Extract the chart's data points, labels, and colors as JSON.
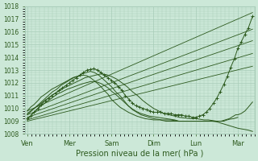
{
  "title": "",
  "xlabel": "Pression niveau de la mer( hPa )",
  "ylabel": "",
  "ylim": [
    1008,
    1018
  ],
  "yticks": [
    1008,
    1009,
    1010,
    1011,
    1012,
    1013,
    1014,
    1015,
    1016,
    1017,
    1018
  ],
  "xtick_labels": [
    "Ven",
    "Mer",
    "Sam",
    "Dim",
    "Lun",
    "Mar"
  ],
  "xtick_positions": [
    0,
    1,
    2,
    3,
    4,
    5
  ],
  "bg_color": "#cce8d8",
  "grid_color": "#a8ccb8",
  "line_color": "#2d5a1e",
  "font_color": "#2d5a1e",
  "xlim": [
    -0.05,
    5.4
  ],
  "straight_lines": [
    {
      "x0": 0.0,
      "y0": 1009.8,
      "x1": 5.35,
      "y1": 1017.5
    },
    {
      "x0": 0.0,
      "y0": 1009.5,
      "x1": 5.35,
      "y1": 1016.2
    },
    {
      "x0": 0.0,
      "y0": 1009.3,
      "x1": 5.35,
      "y1": 1015.3
    },
    {
      "x0": 0.0,
      "y0": 1009.1,
      "x1": 5.35,
      "y1": 1014.3
    },
    {
      "x0": 0.0,
      "y0": 1009.0,
      "x1": 5.35,
      "y1": 1013.3
    }
  ],
  "curved_lines": [
    {
      "x": [
        0.0,
        0.08,
        0.16,
        0.25,
        0.33,
        0.42,
        0.5,
        0.58,
        0.67,
        0.75,
        0.83,
        0.92,
        1.0,
        1.08,
        1.17,
        1.25,
        1.33,
        1.42,
        1.5,
        1.58,
        1.67,
        1.75,
        1.83,
        1.92,
        2.0,
        2.08,
        2.17,
        2.25,
        2.33,
        2.42,
        2.5,
        2.58,
        2.67,
        2.75,
        2.83,
        2.92,
        3.0,
        3.08,
        3.17,
        3.25,
        3.33,
        3.42,
        3.5,
        3.58,
        3.67,
        3.75,
        3.83,
        3.92,
        4.0,
        4.08,
        4.17,
        4.25,
        4.33,
        4.42,
        4.5,
        4.58,
        4.67,
        4.75,
        4.83,
        4.92,
        5.0,
        5.08,
        5.17,
        5.25,
        5.35
      ],
      "y": [
        1009.2,
        1009.4,
        1009.7,
        1010.0,
        1010.3,
        1010.6,
        1010.8,
        1011.0,
        1011.2,
        1011.4,
        1011.6,
        1011.8,
        1012.0,
        1012.2,
        1012.4,
        1012.6,
        1012.8,
        1013.0,
        1013.05,
        1013.1,
        1013.0,
        1012.8,
        1012.6,
        1012.4,
        1012.2,
        1012.0,
        1011.7,
        1011.4,
        1011.0,
        1010.7,
        1010.4,
        1010.2,
        1010.1,
        1010.0,
        1009.9,
        1009.8,
        1009.7,
        1009.7,
        1009.7,
        1009.6,
        1009.6,
        1009.6,
        1009.5,
        1009.5,
        1009.5,
        1009.4,
        1009.4,
        1009.3,
        1009.3,
        1009.4,
        1009.5,
        1009.7,
        1010.0,
        1010.4,
        1010.8,
        1011.3,
        1011.9,
        1012.5,
        1013.2,
        1013.9,
        1014.7,
        1015.2,
        1015.8,
        1016.3,
        1017.2
      ],
      "has_marker": true
    },
    {
      "x": [
        0.0,
        0.1,
        0.2,
        0.3,
        0.4,
        0.5,
        0.6,
        0.7,
        0.8,
        0.9,
        1.0,
        1.1,
        1.2,
        1.3,
        1.4,
        1.5,
        1.6,
        1.7,
        1.8,
        1.9,
        2.0,
        2.1,
        2.2,
        2.3,
        2.4,
        2.5,
        2.6,
        2.7,
        2.8,
        2.9,
        3.0,
        3.2,
        3.4,
        3.6,
        3.8,
        4.0,
        4.2,
        4.4,
        4.6,
        4.7,
        4.75,
        4.8,
        4.85,
        4.9,
        4.95,
        5.0,
        5.08,
        5.17,
        5.25,
        5.35
      ],
      "y": [
        1009.5,
        1009.8,
        1010.1,
        1010.4,
        1010.7,
        1011.0,
        1011.3,
        1011.5,
        1011.8,
        1012.0,
        1012.2,
        1012.4,
        1012.5,
        1012.7,
        1012.8,
        1012.9,
        1012.8,
        1012.6,
        1012.3,
        1012.0,
        1011.7,
        1011.3,
        1011.0,
        1010.6,
        1010.2,
        1009.9,
        1009.7,
        1009.5,
        1009.4,
        1009.3,
        1009.2,
        1009.1,
        1009.1,
        1009.0,
        1009.0,
        1009.0,
        1009.0,
        1009.0,
        1009.0,
        1009.1,
        1009.15,
        1009.2,
        1009.3,
        1009.4,
        1009.5,
        1009.5,
        1009.6,
        1009.8,
        1010.1,
        1010.5
      ],
      "has_marker": false
    },
    {
      "x": [
        0.0,
        0.12,
        0.25,
        0.37,
        0.5,
        0.62,
        0.75,
        0.87,
        1.0,
        1.12,
        1.25,
        1.37,
        1.5,
        1.62,
        1.75,
        1.87,
        2.0,
        2.12,
        2.25,
        2.37,
        2.5,
        2.62,
        2.75,
        2.87,
        3.0,
        3.12,
        3.25,
        3.37,
        3.5,
        3.62,
        3.75,
        3.87,
        4.0,
        4.1,
        4.2,
        4.3,
        4.4,
        4.5,
        4.55,
        4.6,
        4.67,
        4.7,
        4.75,
        4.8,
        4.9,
        5.0
      ],
      "y": [
        1009.6,
        1009.9,
        1010.2,
        1010.5,
        1010.8,
        1011.1,
        1011.35,
        1011.6,
        1011.8,
        1012.0,
        1012.2,
        1012.4,
        1012.5,
        1012.6,
        1012.7,
        1012.65,
        1012.5,
        1012.3,
        1012.0,
        1011.7,
        1011.3,
        1011.0,
        1010.6,
        1010.3,
        1010.0,
        1009.8,
        1009.6,
        1009.5,
        1009.4,
        1009.3,
        1009.25,
        1009.2,
        1009.2,
        1009.15,
        1009.1,
        1009.1,
        1009.05,
        1009.0,
        1009.0,
        1009.0,
        1009.0,
        1009.05,
        1009.1,
        1009.15,
        1009.2,
        1009.3
      ],
      "has_marker": false
    },
    {
      "x": [
        0.0,
        0.08,
        0.16,
        0.25,
        0.33,
        0.42,
        0.5,
        0.58,
        0.67,
        0.75,
        0.83,
        0.92,
        1.0,
        1.08,
        1.17,
        1.25,
        1.33,
        1.42,
        1.5,
        1.58,
        1.67,
        1.75,
        1.83,
        1.92,
        2.0,
        2.1,
        2.2,
        2.3,
        2.4,
        2.5,
        2.6,
        2.7,
        2.8,
        2.9,
        3.0,
        3.15,
        3.3,
        3.45,
        3.6,
        3.75,
        3.9,
        4.0,
        4.1,
        4.2,
        4.3,
        4.4,
        4.5
      ],
      "y": [
        1009.8,
        1010.1,
        1010.3,
        1010.6,
        1010.9,
        1011.1,
        1011.3,
        1011.5,
        1011.65,
        1011.8,
        1011.95,
        1012.1,
        1012.25,
        1012.4,
        1012.5,
        1012.55,
        1012.6,
        1012.55,
        1012.4,
        1012.2,
        1011.95,
        1011.7,
        1011.4,
        1011.1,
        1010.7,
        1010.4,
        1010.1,
        1009.9,
        1009.7,
        1009.55,
        1009.4,
        1009.3,
        1009.2,
        1009.15,
        1009.1,
        1009.1,
        1009.0,
        1009.0,
        1009.0,
        1009.0,
        1009.0,
        1009.0,
        1009.0,
        1009.0,
        1009.0,
        1009.0,
        1009.0
      ],
      "has_marker": false
    },
    {
      "x": [
        0.0,
        0.1,
        0.2,
        0.33,
        0.45,
        0.58,
        0.7,
        0.83,
        0.95,
        1.08,
        1.2,
        1.33,
        1.45,
        1.5,
        1.58,
        1.67,
        1.75,
        1.83,
        1.92,
        2.0,
        2.1,
        2.2,
        2.3,
        2.4,
        2.5,
        2.6,
        2.7,
        2.8,
        2.9,
        3.0,
        3.1,
        3.2,
        3.3,
        3.4,
        3.5,
        3.6,
        3.7,
        3.8,
        3.9,
        4.0,
        4.1,
        4.2,
        4.3,
        4.4,
        4.5,
        4.55,
        4.6,
        4.65,
        4.7,
        4.75,
        4.8,
        4.85,
        4.9,
        4.95,
        5.0,
        5.08,
        5.17,
        5.25,
        5.35
      ],
      "y": [
        1009.1,
        1009.5,
        1009.8,
        1010.2,
        1010.5,
        1010.8,
        1011.1,
        1011.3,
        1011.5,
        1011.65,
        1011.8,
        1011.95,
        1012.05,
        1012.1,
        1012.1,
        1012.05,
        1011.95,
        1011.8,
        1011.6,
        1011.35,
        1011.1,
        1010.8,
        1010.5,
        1010.2,
        1009.95,
        1009.75,
        1009.6,
        1009.5,
        1009.4,
        1009.35,
        1009.3,
        1009.25,
        1009.2,
        1009.15,
        1009.1,
        1009.0,
        1009.0,
        1009.0,
        1009.0,
        1009.0,
        1009.0,
        1009.0,
        1009.0,
        1009.0,
        1008.95,
        1008.9,
        1008.85,
        1008.8,
        1008.75,
        1008.7,
        1008.65,
        1008.6,
        1008.55,
        1008.5,
        1008.45,
        1008.4,
        1008.35,
        1008.3,
        1008.2
      ],
      "has_marker": false
    }
  ]
}
